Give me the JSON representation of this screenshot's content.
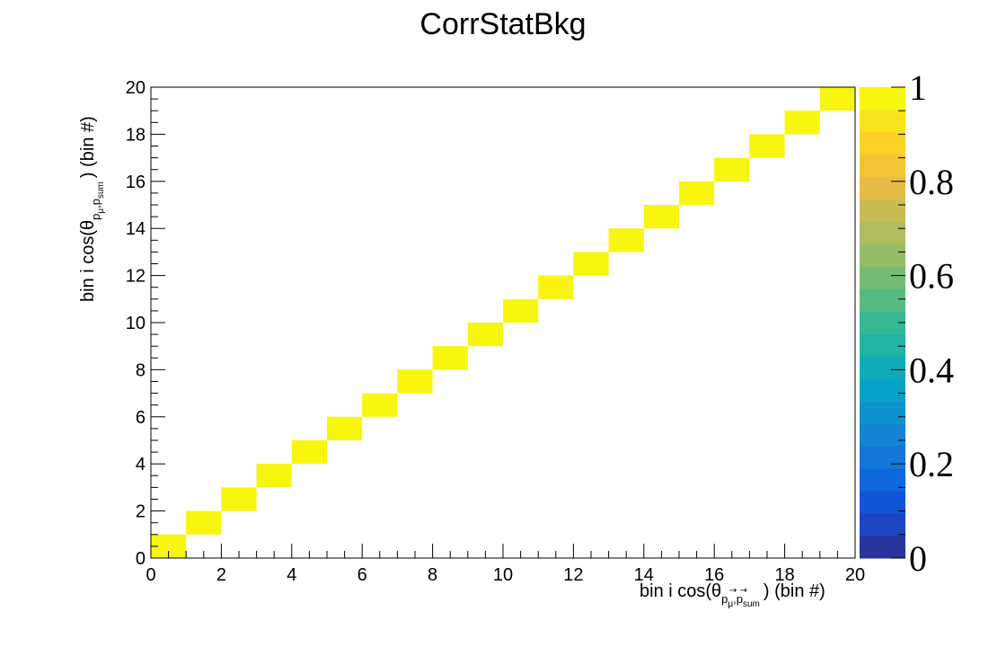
{
  "chart_data": {
    "type": "heatmap",
    "title": "CorrStatBkg",
    "x_axis": {
      "label_prefix": "bin i cos(θ",
      "label_subscript": "p",
      "label_subsub_mu": "μ",
      "label_sep": ",p",
      "label_subsub_sum": "sum",
      "label_suffix": ") (bin #)",
      "range": [
        0,
        20
      ],
      "ticks": [
        "0",
        "2",
        "4",
        "6",
        "8",
        "10",
        "12",
        "14",
        "16",
        "18",
        "20"
      ]
    },
    "y_axis": {
      "label_prefix": "bin i cos(θ",
      "label_subscript": "p",
      "label_subsub_mu": "μ",
      "label_sep": ",p",
      "label_subsub_sum": "sum",
      "label_suffix": ") (bin #)",
      "range": [
        0,
        20
      ],
      "ticks": [
        "0",
        "2",
        "4",
        "6",
        "8",
        "10",
        "12",
        "14",
        "16",
        "18",
        "20"
      ]
    },
    "n_bins_x": 20,
    "n_bins_y": 20,
    "cells": [
      {
        "x": 0,
        "y": 0,
        "value": 1
      },
      {
        "x": 1,
        "y": 1,
        "value": 1
      },
      {
        "x": 2,
        "y": 2,
        "value": 1
      },
      {
        "x": 3,
        "y": 3,
        "value": 1
      },
      {
        "x": 4,
        "y": 4,
        "value": 1
      },
      {
        "x": 5,
        "y": 5,
        "value": 1
      },
      {
        "x": 6,
        "y": 6,
        "value": 1
      },
      {
        "x": 7,
        "y": 7,
        "value": 1
      },
      {
        "x": 8,
        "y": 8,
        "value": 1
      },
      {
        "x": 9,
        "y": 9,
        "value": 1
      },
      {
        "x": 10,
        "y": 10,
        "value": 1
      },
      {
        "x": 11,
        "y": 11,
        "value": 1
      },
      {
        "x": 12,
        "y": 12,
        "value": 1
      },
      {
        "x": 13,
        "y": 13,
        "value": 1
      },
      {
        "x": 14,
        "y": 14,
        "value": 1
      },
      {
        "x": 15,
        "y": 15,
        "value": 1
      },
      {
        "x": 16,
        "y": 16,
        "value": 1
      },
      {
        "x": 17,
        "y": 17,
        "value": 1
      },
      {
        "x": 18,
        "y": 18,
        "value": 1
      },
      {
        "x": 19,
        "y": 19,
        "value": 1
      }
    ],
    "colorbar": {
      "range": [
        0,
        1
      ],
      "tick_labels": [
        "0",
        "0.2",
        "0.4",
        "0.6",
        "0.8",
        "1"
      ],
      "palette": [
        "#27349b",
        "#1f46c2",
        "#1156d6",
        "#0d68dc",
        "#1277d6",
        "#1484d2",
        "#0f93cf",
        "#07a2c6",
        "#11aab7",
        "#22b2a6",
        "#36b893",
        "#55bb80",
        "#74bc73",
        "#95bd67",
        "#b1bc5c",
        "#cbbb53",
        "#e3bb46",
        "#f5c136",
        "#fbd02a",
        "#f9e21e",
        "#f8f50f"
      ]
    },
    "grid": false
  }
}
